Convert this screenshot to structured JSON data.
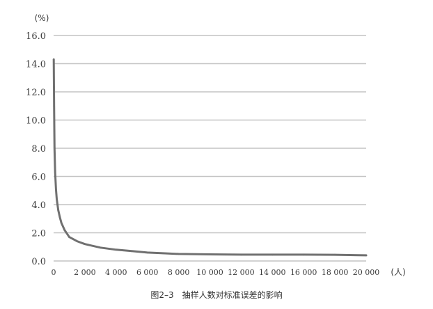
{
  "caption": "图2–3　抽样人数对标准误差的影响",
  "chart_data": {
    "type": "line",
    "ylabel": "(%)",
    "xlabel": "(人)",
    "ylim": [
      0,
      16
    ],
    "xlim": [
      0,
      20000
    ],
    "yticks": [
      "0.0",
      "2.0",
      "4.0",
      "6.0",
      "8.0",
      "10.0",
      "12.0",
      "14.0",
      "16.0"
    ],
    "xticks": [
      "0",
      "2 000",
      "4 000",
      "6 000",
      "8 000",
      "10 000",
      "12 000",
      "14 000",
      "16 000",
      "18 000",
      "20 000"
    ],
    "grid": true,
    "line_color": "#707070",
    "series": [
      {
        "x": [
          10,
          30,
          60,
          100,
          150,
          200,
          300,
          400,
          500,
          700,
          1000,
          1500,
          2000,
          3000,
          4000,
          5000,
          6000,
          7000,
          8000,
          10000,
          12000,
          14000,
          16000,
          18000,
          20000
        ],
        "values": [
          14.3,
          11.0,
          8.0,
          6.3,
          5.1,
          4.4,
          3.6,
          3.1,
          2.7,
          2.2,
          1.7,
          1.4,
          1.2,
          0.95,
          0.8,
          0.7,
          0.6,
          0.55,
          0.5,
          0.47,
          0.45,
          0.45,
          0.45,
          0.44,
          0.4
        ]
      }
    ]
  }
}
